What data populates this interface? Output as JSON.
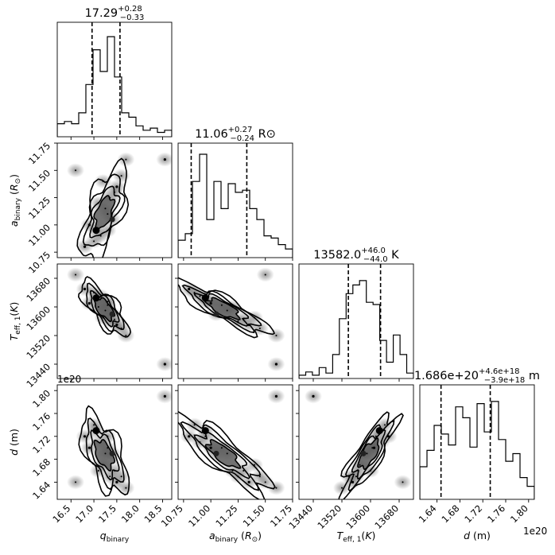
{
  "chart_data": {
    "type": "corner",
    "parameters": [
      {
        "key": "q_binary",
        "label": "q_binary",
        "range": [
          16.2,
          18.7
        ],
        "ticks": [
          16.5,
          17.0,
          17.5,
          18.0,
          18.5
        ],
        "tick_labels": [
          "16.5",
          "17.0",
          "17.5",
          "18.0",
          "18.5"
        ]
      },
      {
        "key": "a_binary",
        "label": "a_binary (R_sun)",
        "range": [
          10.7,
          11.75
        ],
        "ticks": [
          10.75,
          11.0,
          11.25,
          11.5,
          11.75
        ],
        "tick_labels": [
          "10.75",
          "11.00",
          "11.25",
          "11.50",
          "11.75"
        ]
      },
      {
        "key": "T_eff1",
        "label": "T_eff,1 (K)",
        "range": [
          13400,
          13720
        ],
        "ticks": [
          13440,
          13520,
          13600,
          13680
        ],
        "tick_labels": [
          "13440",
          "13520",
          "13600",
          "13680"
        ]
      },
      {
        "key": "d",
        "label": "d (m)",
        "range": [
          1.61,
          1.81
        ],
        "ticks": [
          1.64,
          1.68,
          1.72,
          1.76,
          1.8
        ],
        "tick_labels": [
          "1.64",
          "1.68",
          "1.72",
          "1.76",
          "1.80"
        ],
        "scale_factor_label": "1e20"
      }
    ],
    "titles": [
      {
        "center": "17.29",
        "plus": "+0.28",
        "minus": "−0.33",
        "unit": ""
      },
      {
        "center": "11.06",
        "plus": "+0.27",
        "minus": "−0.24",
        "unit": "R⊙"
      },
      {
        "center": "13582.0",
        "plus": "+46.0",
        "minus": "−44.0",
        "unit": "K"
      },
      {
        "center": "1.686e+20",
        "plus": "+4.6e+18",
        "minus": "−3.9e+18",
        "unit": "m"
      }
    ],
    "quantiles": [
      [
        16.96,
        17.57
      ],
      [
        10.82,
        11.33
      ],
      [
        13538,
        13628
      ],
      [
        1.647,
        1.733
      ]
    ],
    "histograms": [
      [
        0.12,
        0.14,
        0.12,
        0.22,
        0.48,
        0.8,
        0.6,
        0.92,
        0.55,
        0.22,
        0.18,
        0.1,
        0.06,
        0.08,
        0.04,
        0.06
      ],
      [
        0.16,
        0.22,
        0.7,
        0.95,
        0.35,
        0.7,
        0.45,
        0.68,
        0.6,
        0.62,
        0.45,
        0.35,
        0.2,
        0.18,
        0.12,
        0.08
      ],
      [
        0.03,
        0.06,
        0.03,
        0.1,
        0.05,
        0.22,
        0.55,
        0.78,
        0.86,
        0.9,
        0.7,
        0.68,
        0.35,
        0.15,
        0.4,
        0.22,
        0.05
      ],
      [
        0.3,
        0.45,
        0.68,
        0.6,
        0.5,
        0.85,
        0.75,
        0.48,
        0.88,
        0.62,
        0.9,
        0.55,
        0.35,
        0.42,
        0.2,
        0.12
      ]
    ],
    "samples": [
      {
        "q": 17.05,
        "a": 10.95,
        "t": 13625,
        "d": 1.73
      },
      {
        "q": 17.15,
        "a": 10.9,
        "t": 13630,
        "d": 1.71
      },
      {
        "q": 17.3,
        "a": 11.1,
        "t": 13605,
        "d": 1.7
      },
      {
        "q": 17.4,
        "a": 11.05,
        "t": 13580,
        "d": 1.69
      },
      {
        "q": 17.1,
        "a": 11.2,
        "t": 13600,
        "d": 1.66
      },
      {
        "q": 17.35,
        "a": 11.25,
        "t": 13560,
        "d": 1.65
      },
      {
        "q": 17.5,
        "a": 11.35,
        "t": 13550,
        "d": 1.64
      },
      {
        "q": 17.2,
        "a": 11.4,
        "t": 13570,
        "d": 1.67
      },
      {
        "q": 17.0,
        "a": 10.85,
        "t": 13640,
        "d": 1.74
      },
      {
        "q": 16.8,
        "a": 10.8,
        "t": 13650,
        "d": 1.72
      },
      {
        "q": 17.25,
        "a": 11.15,
        "t": 13590,
        "d": 1.69
      },
      {
        "q": 17.45,
        "a": 11.3,
        "t": 13565,
        "d": 1.66
      },
      {
        "q": 16.9,
        "a": 11.0,
        "t": 13610,
        "d": 1.7
      },
      {
        "q": 17.6,
        "a": 11.45,
        "t": 13540,
        "d": 1.65
      },
      {
        "q": 17.3,
        "a": 10.95,
        "t": 13615,
        "d": 1.72
      },
      {
        "q": 18.55,
        "a": 11.6,
        "t": 13440,
        "d": 1.79
      },
      {
        "q": 16.6,
        "a": 11.5,
        "t": 13690,
        "d": 1.64
      },
      {
        "q": 17.7,
        "a": 11.6,
        "t": 13520,
        "d": 1.63
      }
    ]
  }
}
